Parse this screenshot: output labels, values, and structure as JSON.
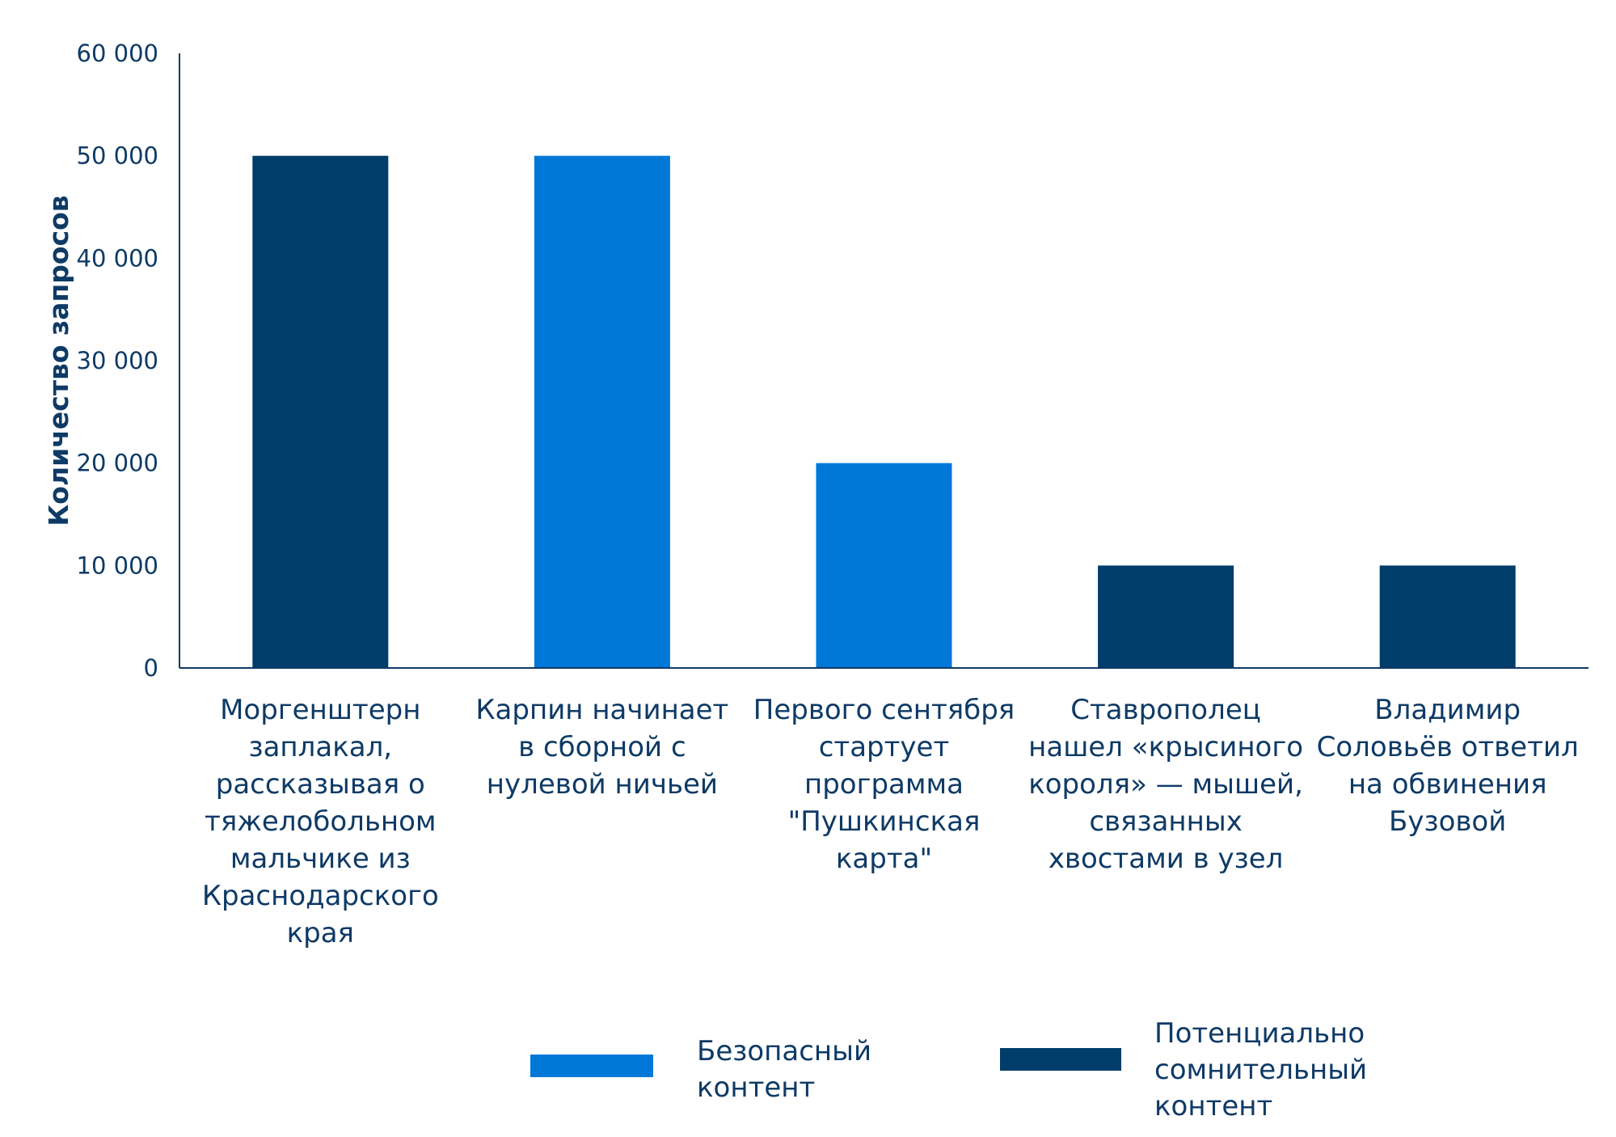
{
  "chart_data": {
    "type": "bar",
    "title": "",
    "xlabel": "",
    "ylabel": "Количество запросов",
    "ylim": [
      0,
      60000
    ],
    "yticks": [
      {
        "value": 0,
        "label": "0"
      },
      {
        "value": 10000,
        "label": "10 000"
      },
      {
        "value": 20000,
        "label": "20 000"
      },
      {
        "value": 30000,
        "label": "30 000"
      },
      {
        "value": 40000,
        "label": "40 000"
      },
      {
        "value": 50000,
        "label": "50 000"
      },
      {
        "value": 60000,
        "label": "60 000"
      }
    ],
    "grid": false,
    "legend_position": "bottom",
    "categories": [
      "Моргенштерн заплакал, рассказывая о тяжелобольном мальчике из Краснодарского края",
      "Карпин начинает в сборной с нулевой ничьей",
      "Первого сентября стартует программа \"Пушкинская карта\"",
      "Ставрополец нашел «крысиного короля» — мышей, связанных хвостами в узел",
      "Владимир Соловьёв ответил на обвинения Бузовой"
    ],
    "values": [
      50000,
      50000,
      20000,
      10000,
      10000
    ],
    "bar_groups": [
      "suspicious",
      "safe",
      "safe",
      "suspicious",
      "suspicious"
    ],
    "legend": [
      {
        "key": "safe",
        "label": "Безопасный контент",
        "color": "#0078d7"
      },
      {
        "key": "suspicious",
        "label": "Потенциально сомнительный контент",
        "color": "#003d6b"
      }
    ],
    "colors": {
      "safe": "#0078d7",
      "suspicious": "#003d6b",
      "axis": "#0e3a66",
      "text": "#0e3a66"
    }
  }
}
